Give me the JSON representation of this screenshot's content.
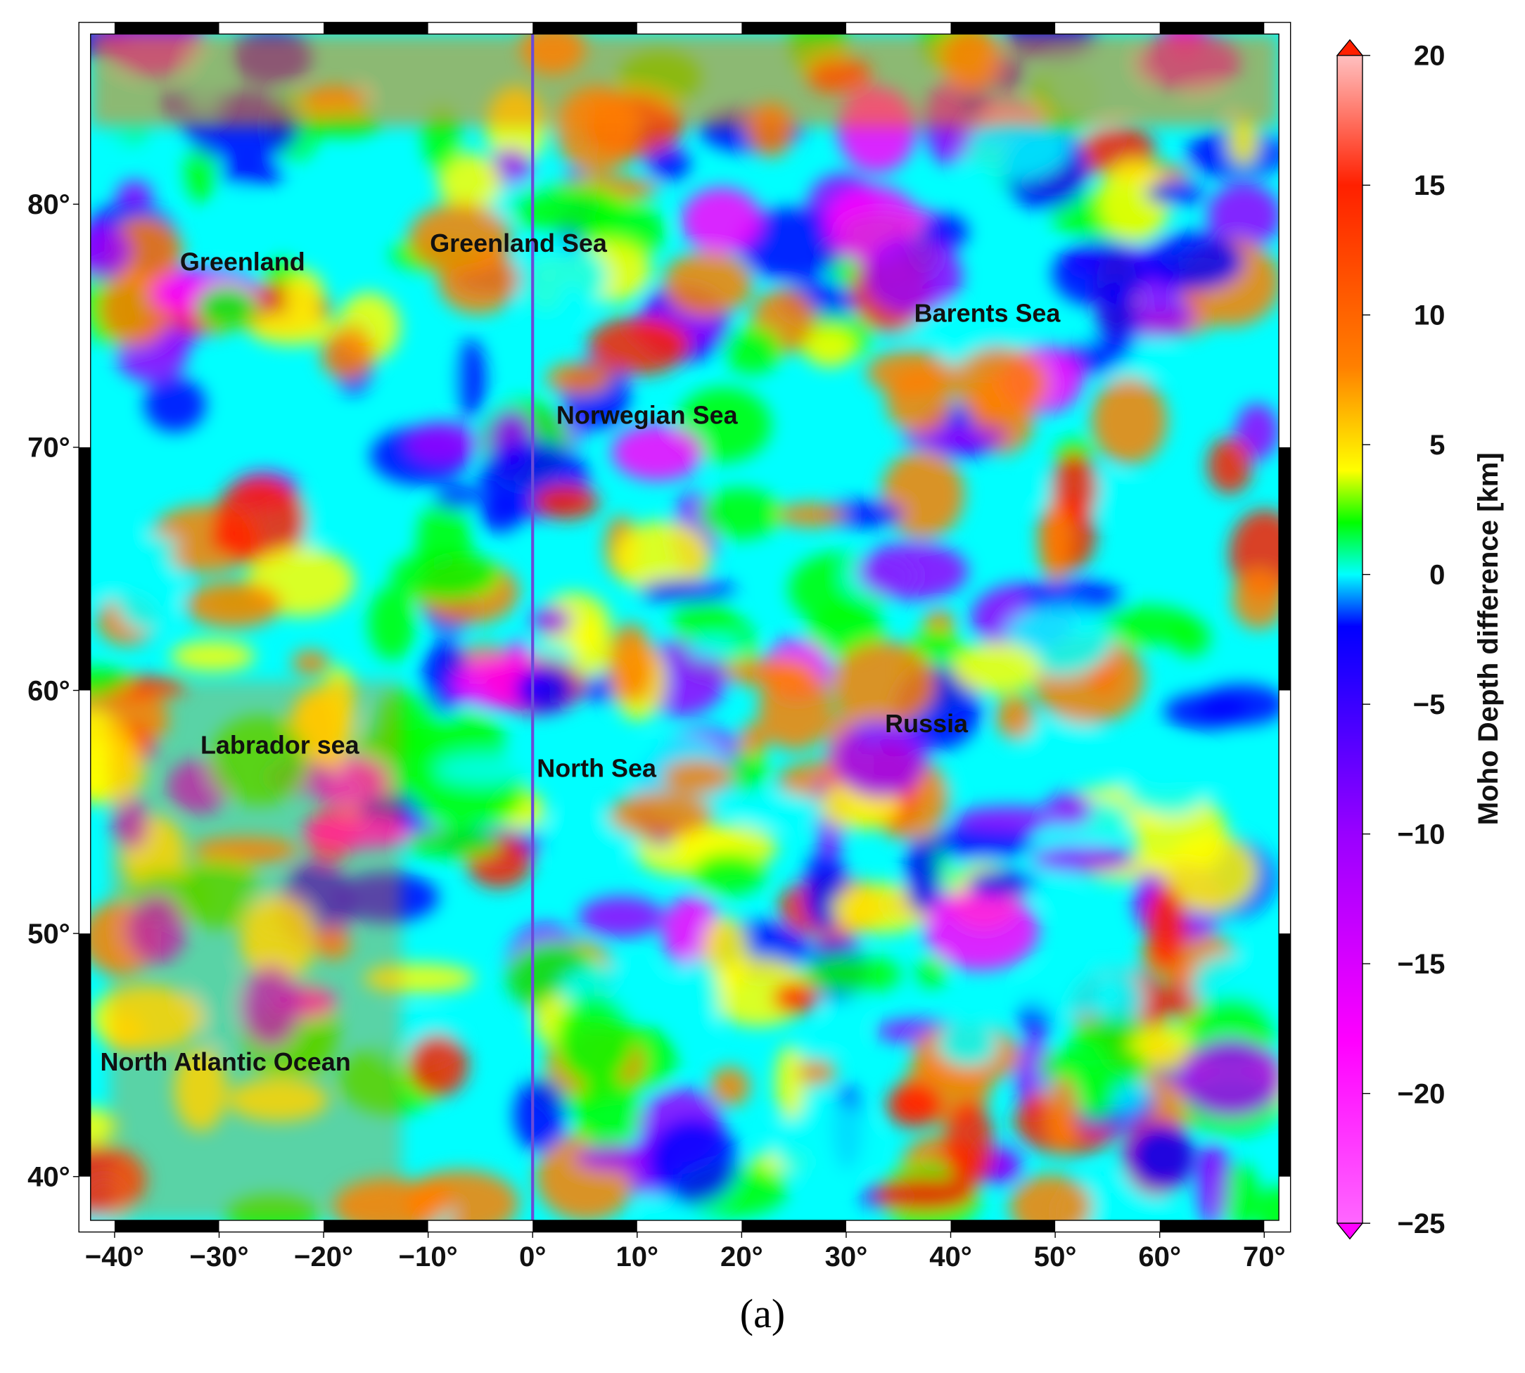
{
  "map": {
    "caption": "(a)",
    "xlim": [
      -42.3,
      71.4
    ],
    "ylim": [
      38.2,
      87
    ],
    "xticks": [
      {
        "value": -40,
        "label": "−40°"
      },
      {
        "value": -30,
        "label": "−30°"
      },
      {
        "value": -20,
        "label": "−20°"
      },
      {
        "value": -10,
        "label": "−10°"
      },
      {
        "value": 0,
        "label": "0°"
      },
      {
        "value": 10,
        "label": "10°"
      },
      {
        "value": 20,
        "label": "20°"
      },
      {
        "value": 30,
        "label": "30°"
      },
      {
        "value": 40,
        "label": "40°"
      },
      {
        "value": 50,
        "label": "50°"
      },
      {
        "value": 60,
        "label": "60°"
      },
      {
        "value": 70,
        "label": "70°"
      }
    ],
    "yticks": [
      {
        "value": 40,
        "label": "40°"
      },
      {
        "value": 50,
        "label": "50°"
      },
      {
        "value": 60,
        "label": "60°"
      },
      {
        "value": 70,
        "label": "70°"
      },
      {
        "value": 80,
        "label": "80°"
      }
    ],
    "places": [
      "Greenland",
      "Greenland Sea",
      "Barents Sea",
      "Norwegian Sea",
      "Russia",
      "Labrador sea",
      "North Sea",
      "North Atlantic Ocean"
    ],
    "colorbar": {
      "label": "Moho Depth difference [km]",
      "lim": [
        -25,
        20
      ],
      "ticks": [
        {
          "value": -25,
          "label": "−25"
        },
        {
          "value": -20,
          "label": "−20"
        },
        {
          "value": -15,
          "label": "−15"
        },
        {
          "value": -10,
          "label": "−10"
        },
        {
          "value": -5,
          "label": "−5"
        },
        0,
        5,
        10,
        15,
        20
      ],
      "colormap": [
        {
          "value": -25,
          "color": "#ff66ff"
        },
        {
          "value": -18,
          "color": "#ff00ff"
        },
        {
          "value": -10,
          "color": "#9900ff"
        },
        {
          "value": -2,
          "color": "#0000ff"
        },
        {
          "value": 0,
          "color": "#00ffff"
        },
        {
          "value": 2,
          "color": "#00ff00"
        },
        {
          "value": 4,
          "color": "#ffff00"
        },
        {
          "value": 8,
          "color": "#ff8000"
        },
        {
          "value": 15,
          "color": "#ff2000"
        },
        {
          "value": 20,
          "color": "#ffc0c0"
        }
      ]
    }
  }
}
